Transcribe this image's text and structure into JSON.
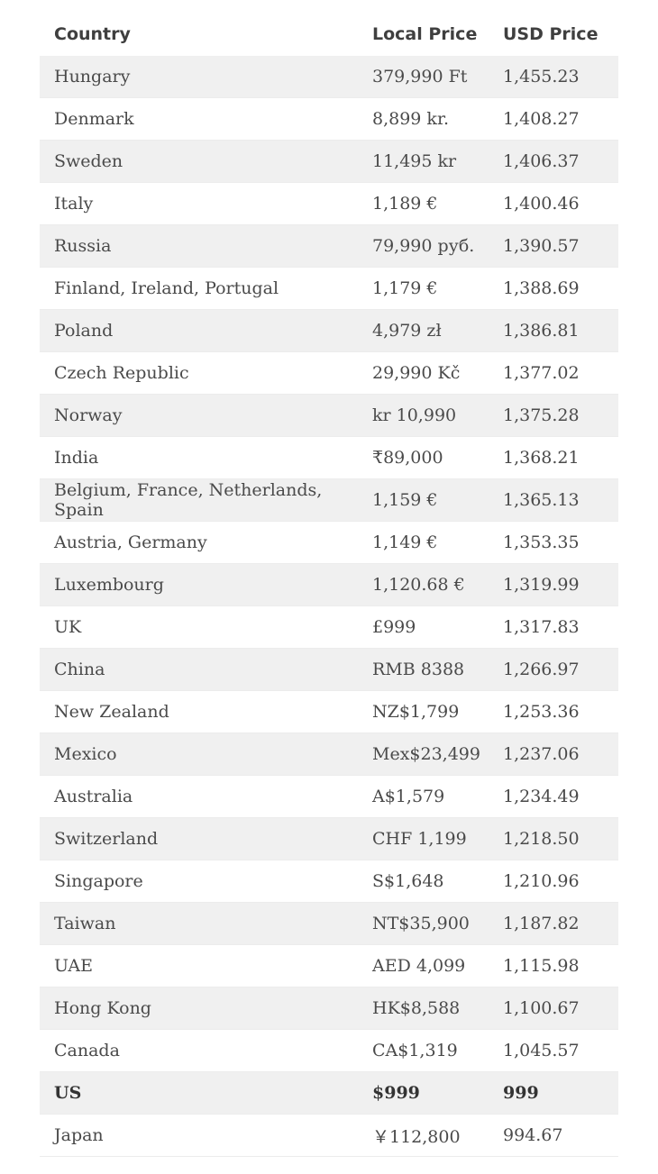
{
  "table": {
    "headers": {
      "country": "Country",
      "local": "Local Price",
      "usd": "USD Price"
    },
    "rows": [
      {
        "country": "Hungary",
        "local": "379,990 Ft",
        "usd": "1,455.23"
      },
      {
        "country": "Denmark",
        "local": "8,899 kr.",
        "usd": "1,408.27"
      },
      {
        "country": "Sweden",
        "local": "11,495 kr",
        "usd": "1,406.37"
      },
      {
        "country": "Italy",
        "local": "1,189 €",
        "usd": "1,400.46"
      },
      {
        "country": "Russia",
        "local": "79,990 руб.",
        "usd": "1,390.57"
      },
      {
        "country": "Finland, Ireland, Portugal",
        "local": "1,179 €",
        "usd": "1,388.69"
      },
      {
        "country": "Poland",
        "local": "4,979 zł",
        "usd": "1,386.81"
      },
      {
        "country": "Czech Republic",
        "local": "29,990 Kč",
        "usd": "1,377.02"
      },
      {
        "country": "Norway",
        "local": "kr 10,990",
        "usd": "1,375.28"
      },
      {
        "country": "India",
        "local": "₹89,000",
        "usd": "1,368.21"
      },
      {
        "country": "Belgium, France, Netherlands, Spain",
        "local": "1,159 €",
        "usd": "1,365.13"
      },
      {
        "country": "Austria, Germany",
        "local": "1,149 €",
        "usd": "1,353.35"
      },
      {
        "country": "Luxembourg",
        "local": "1,120.68 €",
        "usd": "1,319.99"
      },
      {
        "country": "UK",
        "local": "£999",
        "usd": "1,317.83"
      },
      {
        "country": "China",
        "local": "RMB 8388",
        "usd": "1,266.97"
      },
      {
        "country": "New Zealand",
        "local": "NZ$1,799",
        "usd": "1,253.36"
      },
      {
        "country": "Mexico",
        "local": "Mex$23,499",
        "usd": "1,237.06"
      },
      {
        "country": "Australia",
        "local": "A$1,579",
        "usd": "1,234.49"
      },
      {
        "country": "Switzerland",
        "local": "CHF 1,199",
        "usd": "1,218.50"
      },
      {
        "country": "Singapore",
        "local": "S$1,648",
        "usd": "1,210.96"
      },
      {
        "country": "Taiwan",
        "local": "NT$35,900",
        "usd": "1,187.82"
      },
      {
        "country": "UAE",
        "local": "AED 4,099",
        "usd": "1,115.98"
      },
      {
        "country": "Hong Kong",
        "local": "HK$8,588",
        "usd": "1,100.67"
      },
      {
        "country": "Canada",
        "local": "CA$1,319",
        "usd": "1,045.57"
      },
      {
        "country": "US",
        "local": "$999",
        "usd": "999"
      },
      {
        "country": "Japan",
        "local": "￥112,800",
        "usd": "994.67"
      }
    ]
  },
  "colors": {
    "shaded_row": "#f0f0f0",
    "text": "#4a4a4a",
    "header_text": "#3f3f3f"
  }
}
